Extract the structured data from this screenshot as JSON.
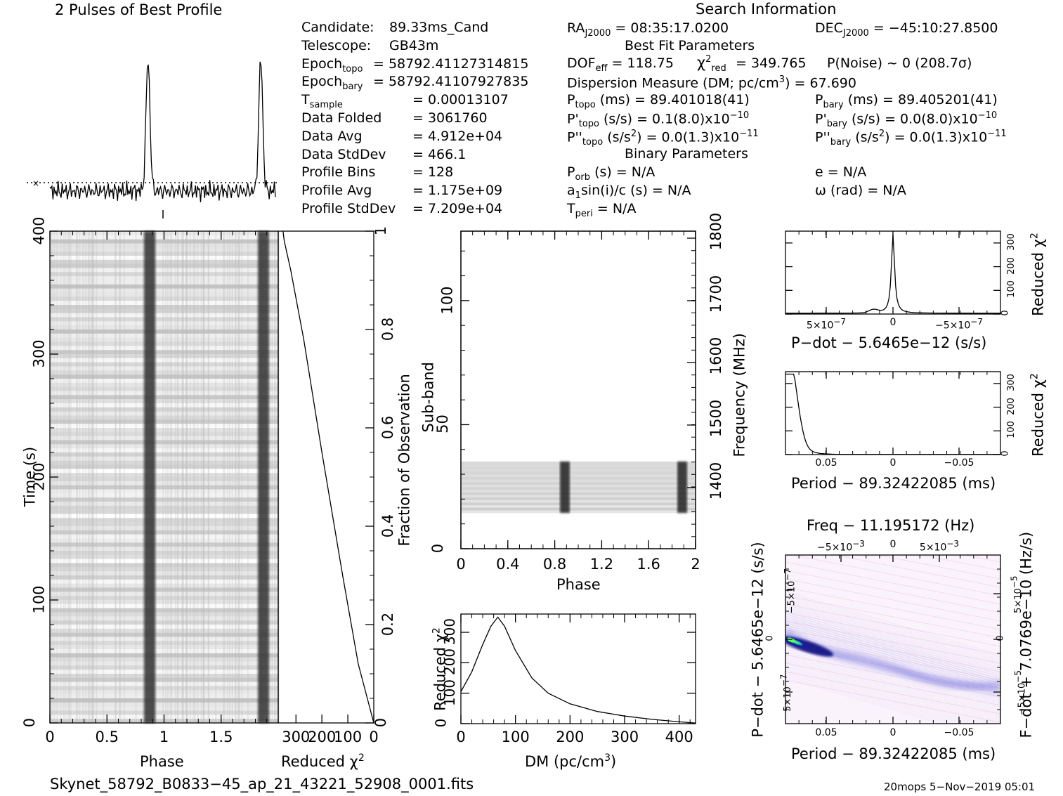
{
  "profile_title": "2 Pulses of Best Profile",
  "search_title": "Search Information",
  "left_info": [
    {
      "k": "Candidate:",
      "v": "89.33ms_Cand"
    },
    {
      "k": "Telescope:",
      "v": "GB43m"
    },
    {
      "k": "Epoch",
      "sub": "topo",
      "v": "= 58792.41127314815"
    },
    {
      "k": "Epoch",
      "sub": "bary",
      "v": "= 58792.41107927835"
    },
    {
      "k": "T",
      "sub": "sample",
      "v": "=   0.00013107"
    },
    {
      "k": "Data Folded",
      "v": "=   3061760"
    },
    {
      "k": "Data Avg",
      "v": "=   4.912e+04"
    },
    {
      "k": "Data StdDev",
      "v": "=   466.1"
    },
    {
      "k": "Profile Bins",
      "v": "=   128"
    },
    {
      "k": "Profile Avg",
      "v": "=   1.175e+09"
    },
    {
      "k": "Profile StdDev",
      "v": "=   7.209e+04"
    }
  ],
  "mid_info": {
    "ra": "RA",
    "ra_sub": "J2000",
    "ra_val": "= 08:35:17.0200",
    "dec": "DEC",
    "dec_sub": "J2000",
    "dec_val": "= −45:10:27.8500",
    "best_fit": "Best Fit Parameters",
    "dof": "DOF",
    "dof_sub": "eff",
    "dof_val": "= 118.75",
    "chi": "χ",
    "chi_sup": "2",
    "chi_sub": "red",
    "chi_val": "= 349.765",
    "pnoise": "P(Noise) ~ 0    (208.7σ)",
    "dm_line": "Dispersion Measure (DM; pc/cm",
    "dm_sup": "3",
    "dm_val": ") = 67.690",
    "ptopo": "P",
    "ptopo_sub": "topo",
    "ptopo_val": "(ms) =  89.401018(41)",
    "pbary": "P",
    "pbary_sub": "bary",
    "pbary_val": "(ms) =  89.405201(41)",
    "pdtopo": "P'",
    "pdtopo_sub": "topo",
    "pdtopo_val": "(s/s) =  0.1(8.0)x10",
    "pdtopo_exp": "−10",
    "pdbary": "P'",
    "pdbary_sub": "bary",
    "pdbary_val": "(s/s) = 0.0(8.0)x10",
    "pdbary_exp": "−10",
    "pddtopo": "P''",
    "pddtopo_sub": "topo",
    "pddtopo_val": "(s/s",
    "pddtopo_sup": "2",
    "pddtopo_val2": ") = 0.0(1.3)x10",
    "pddtopo_exp": "−11",
    "pddbary": "P''",
    "pddbary_sub": "bary",
    "pddbary_val": "(s/s",
    "pddbary_sup": "2",
    "pddbary_val2": ") = 0.0(1.3)x10",
    "pddbary_exp": "−11",
    "binary": "Binary Parameters",
    "porb": "P",
    "porb_sub": "orb",
    "porb_val": "(s) = N/A",
    "ecc": "e = N/A",
    "a1": "a",
    "a1_sub": "1",
    "a1_val": "sin(i)/c (s) = N/A",
    "omega": "ω (rad) = N/A",
    "tperi": "T",
    "tperi_sub": "peri",
    "tperi_val": "= N/A"
  },
  "footer_file": "Skynet_58792_B0833−45_ap_21_43221_52908_0001.fits",
  "footer_stamp": "20mops   5−Nov−2019 05:01",
  "colors": {
    "trace": "#000000",
    "grey_band": "#222222",
    "heat_peak": "#1ec8a0",
    "heat_blue": "#2020c0"
  },
  "chart_data": [
    {
      "type": "line",
      "title": "2 Pulses of Best Profile",
      "x_range": [
        0,
        2
      ],
      "pulse_centers": [
        0.87,
        1.87
      ],
      "baseline_level": 0.18,
      "peak_level": 1.0
    },
    {
      "type": "heatmap",
      "name": "time-phase",
      "xlabel": "Phase",
      "ylabel": "Time (s)",
      "xlim": [
        0,
        2
      ],
      "ylim": [
        0,
        400
      ],
      "xticks": [
        "0",
        "0.5",
        "1",
        "1.5"
      ],
      "yticks": [
        "0",
        "100",
        "200",
        "300",
        "400"
      ],
      "band_centers": [
        0.87,
        1.87
      ]
    },
    {
      "type": "line",
      "name": "reduced-chi2-vs-fraction",
      "xlabel": "Reduced χ",
      "xlabel_sup": "2",
      "ylabel": "Fraction of Observation",
      "xticks": [
        "300",
        "200",
        "100",
        "0"
      ],
      "yticks": [
        "0",
        "0.2",
        "0.4",
        "0.6",
        "0.8",
        "1"
      ],
      "x": [
        0,
        10,
        25,
        60,
        120,
        200,
        270,
        320,
        345,
        350
      ],
      "y": [
        0,
        0.02,
        0.05,
        0.12,
        0.3,
        0.55,
        0.78,
        0.92,
        0.98,
        1.0
      ]
    },
    {
      "type": "heatmap",
      "name": "subband-phase",
      "xlabel": "Phase",
      "ylabel": "Sub-band",
      "y2label": "Frequency (MHz)",
      "xlim": [
        0,
        2
      ],
      "ylim": [
        0,
        128
      ],
      "xticks": [
        "0",
        "0.4",
        "0.8",
        "1.2",
        "1.6",
        "2"
      ],
      "yticks": [
        "0",
        "50",
        "100"
      ],
      "y2ticks": [
        "1400",
        "1500",
        "1600",
        "1700",
        "1800"
      ],
      "active_subbands": [
        15,
        35
      ],
      "band_centers": [
        0.88,
        1.88
      ]
    },
    {
      "type": "line",
      "name": "dm-curve",
      "xlabel": "DM (pc/cm",
      "xlabel_sup": "3",
      "xlabel_end": ")",
      "ylabel": "Reduced χ",
      "ylabel_sup": "2",
      "xlim": [
        0,
        430
      ],
      "ylim": [
        0,
        360
      ],
      "xticks": [
        "0",
        "100",
        "200",
        "300",
        "400"
      ],
      "yticks": [
        "0",
        "100",
        "200",
        "300"
      ],
      "x": [
        0,
        20,
        40,
        55,
        67.69,
        80,
        100,
        130,
        160,
        200,
        250,
        300,
        350,
        400,
        430
      ],
      "y": [
        105,
        170,
        260,
        320,
        349.8,
        320,
        240,
        150,
        100,
        65,
        40,
        25,
        14,
        6,
        2
      ]
    },
    {
      "type": "line",
      "name": "pdot-curve",
      "xlabel": "P−dot − 5.6465e−12 (s/s)",
      "ylabel": "Reduced χ",
      "ylabel_sup": "2",
      "xticks": [
        "5×10",
        "0",
        "−5×10"
      ],
      "xticks_exp": "−7",
      "yticks": [
        "0",
        "100",
        "200",
        "300"
      ]
    },
    {
      "type": "line",
      "name": "period-curve",
      "xlabel": "Period − 89.32422085 (ms)",
      "ylabel": "Reduced χ",
      "ylabel_sup": "2",
      "xticks": [
        "0.05",
        "0",
        "−0.05"
      ],
      "yticks": [
        "0",
        "100",
        "200",
        "300"
      ]
    },
    {
      "type": "heatmap",
      "name": "period-pdot-plane",
      "title": "Freq − 11.195172 (Hz)",
      "xlabel": "Period − 89.32422085 (ms)",
      "ylabel": "P−dot − 5.6465e−12 (s/s)",
      "y2label": "F−dot + 7.0769e−10 (Hz/s)",
      "xticks": [
        "0.05",
        "0",
        "−0.05"
      ],
      "x2ticks": [
        "−5×10",
        "0",
        "5×10"
      ],
      "x2ticks_exp": "−3",
      "yticks": [
        "−5×10",
        "0",
        "5×10"
      ],
      "yticks_exp": "−7",
      "y2ticks": [
        "5×10",
        "0",
        "−5×10"
      ],
      "y2ticks_exp": "−5"
    }
  ]
}
